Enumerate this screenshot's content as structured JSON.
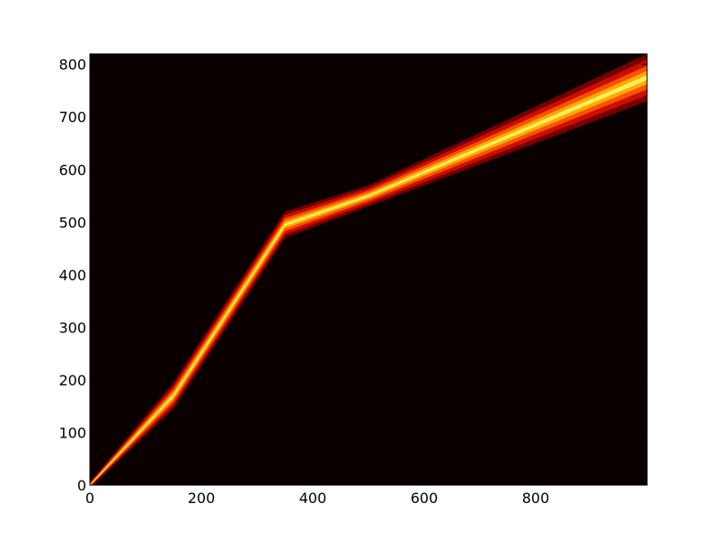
{
  "chart_data": {
    "type": "heatmap",
    "title": "",
    "xlabel": "",
    "ylabel": "",
    "xlim": [
      0,
      1000
    ],
    "ylim": [
      0,
      820
    ],
    "x_ticks": [
      "0",
      "200",
      "400",
      "600",
      "800"
    ],
    "x_tick_values": [
      0,
      200,
      400,
      600,
      800
    ],
    "y_ticks": [
      "0",
      "100",
      "200",
      "300",
      "400",
      "500",
      "600",
      "700",
      "800"
    ],
    "y_tick_values": [
      0,
      100,
      200,
      300,
      400,
      500,
      600,
      700,
      800
    ],
    "grid": false,
    "colormap": "hot",
    "background_color": "#0b0000",
    "band_center": [
      {
        "x": 0,
        "y": 0
      },
      {
        "x": 150,
        "y": 170
      },
      {
        "x": 350,
        "y": 495
      },
      {
        "x": 500,
        "y": 550
      },
      {
        "x": 700,
        "y": 640
      },
      {
        "x": 1000,
        "y": 775
      }
    ],
    "band_spread": [
      {
        "x": 0,
        "y": 5
      },
      {
        "x": 150,
        "y": 25
      },
      {
        "x": 350,
        "y": 25
      },
      {
        "x": 500,
        "y": 20
      },
      {
        "x": 700,
        "y": 30
      },
      {
        "x": 1000,
        "y": 45
      }
    ]
  }
}
